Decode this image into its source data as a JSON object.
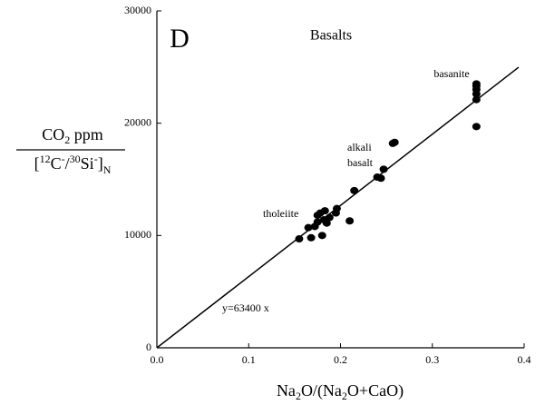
{
  "chart_data": {
    "type": "scatter",
    "panel": "D",
    "title": "Basalts",
    "x_label_parts": [
      "Na",
      "2",
      "O/(Na",
      "2",
      "O+CaO)"
    ],
    "y_label_top_parts": [
      "CO",
      "2",
      " ppm"
    ],
    "y_label_bottom_parts": [
      "[",
      "12",
      "C",
      "-",
      "/",
      "30",
      "Si",
      "-",
      "]",
      "N"
    ],
    "color": "#000000",
    "x": [
      0.155,
      0.165,
      0.168,
      0.172,
      0.175,
      0.175,
      0.178,
      0.18,
      0.182,
      0.183,
      0.185,
      0.188,
      0.195,
      0.196,
      0.21,
      0.215,
      0.24,
      0.244,
      0.247,
      0.257,
      0.259,
      0.348,
      0.348,
      0.348,
      0.348,
      0.348,
      0.348
    ],
    "values": [
      9700,
      10700,
      9800,
      10800,
      11200,
      11800,
      12000,
      10000,
      11400,
      12200,
      11100,
      11600,
      12000,
      12400,
      11300,
      14000,
      15200,
      15100,
      15900,
      18200,
      18300,
      19700,
      22100,
      22600,
      23000,
      23300,
      23500
    ],
    "fit": {
      "slope": 63400,
      "x_range": [
        0,
        0.394
      ]
    },
    "annotations": [
      "basanite",
      "alkali",
      "basalt",
      "tholeiite",
      "y=63400 x"
    ],
    "xlim": [
      0,
      0.4
    ],
    "ylim": [
      0,
      30000
    ],
    "xticks": [
      {
        "value": 0,
        "label": "0.0"
      },
      0.1,
      0.2,
      0.3,
      0.4
    ],
    "yticks": [
      0,
      10000,
      20000,
      30000
    ],
    "grid": false
  }
}
